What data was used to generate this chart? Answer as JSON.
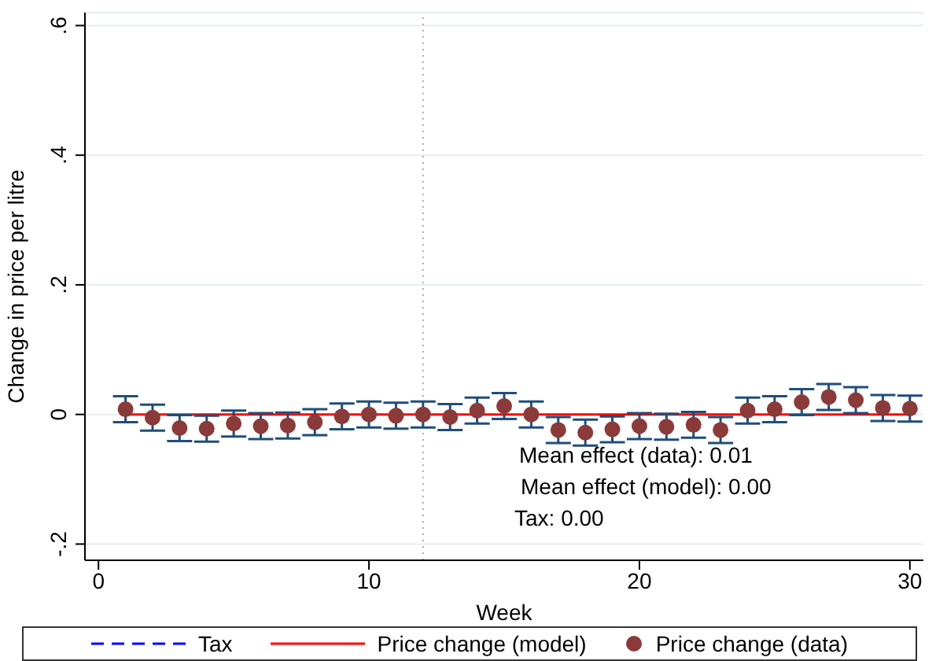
{
  "chart_data": {
    "type": "scatter",
    "xlabel": "Week",
    "ylabel": "Change in price per litre",
    "x": [
      1,
      2,
      3,
      4,
      5,
      6,
      7,
      8,
      9,
      10,
      11,
      12,
      13,
      14,
      15,
      16,
      17,
      18,
      19,
      20,
      21,
      22,
      23,
      24,
      25,
      26,
      27,
      28,
      29,
      30
    ],
    "series": [
      {
        "name": "Tax",
        "type": "line",
        "color": "#0000ff",
        "line_style": "dashed",
        "values": [
          null,
          null,
          null,
          null,
          null,
          null,
          null,
          null,
          null,
          null,
          null,
          null,
          null,
          null,
          null,
          null,
          null,
          null,
          null,
          null,
          null,
          null,
          null,
          null,
          null,
          null,
          null,
          null,
          null,
          null
        ]
      },
      {
        "name": "Price change (model)",
        "type": "line",
        "color": "#ff0000",
        "line_style": "solid",
        "values": [
          0,
          0,
          0,
          0,
          0,
          0,
          0,
          0,
          0,
          0,
          0,
          0,
          0,
          0,
          0,
          0,
          0,
          0,
          0,
          0,
          0,
          0,
          0,
          0,
          0,
          0,
          0,
          0,
          0,
          0
        ]
      },
      {
        "name": "Price change (data)",
        "type": "scatter",
        "color": "#8b3a3a",
        "marker": "circle",
        "values": [
          0.008,
          -0.005,
          -0.021,
          -0.022,
          -0.014,
          -0.018,
          -0.017,
          -0.012,
          -0.003,
          0.0,
          -0.002,
          0.0,
          -0.004,
          0.006,
          0.013,
          0.0,
          -0.024,
          -0.028,
          -0.023,
          -0.018,
          -0.019,
          -0.016,
          -0.024,
          0.006,
          0.008,
          0.019,
          0.027,
          0.022,
          0.01,
          0.009
        ],
        "errors": [
          0.02,
          0.02,
          0.02,
          0.02,
          0.02,
          0.02,
          0.02,
          0.02,
          0.02,
          0.02,
          0.02,
          0.02,
          0.02,
          0.02,
          0.02,
          0.02,
          0.02,
          0.02,
          0.02,
          0.02,
          0.02,
          0.02,
          0.02,
          0.02,
          0.02,
          0.02,
          0.02,
          0.02,
          0.02,
          0.02
        ]
      }
    ],
    "xlim": [
      -0.5,
      30.5
    ],
    "xticks": [
      0,
      10,
      20,
      30
    ],
    "ylim": [
      -0.225,
      0.62
    ],
    "yticks": [
      {
        "value": -0.2,
        "label": "-.2"
      },
      {
        "value": 0,
        "label": "0"
      },
      {
        "value": 0.2,
        "label": ".2"
      },
      {
        "value": 0.4,
        "label": ".4"
      },
      {
        "value": 0.6,
        "label": ".6"
      }
    ],
    "ref_lines": [
      {
        "axis": "x",
        "value": 12,
        "color": "#aaaaaa",
        "line_style": "dotted"
      }
    ],
    "annotations": [
      "Mean effect (data): 0.01",
      "Mean effect (model): 0.00",
      "Tax: 0.00"
    ],
    "grid": "y",
    "legend": "bottom"
  }
}
